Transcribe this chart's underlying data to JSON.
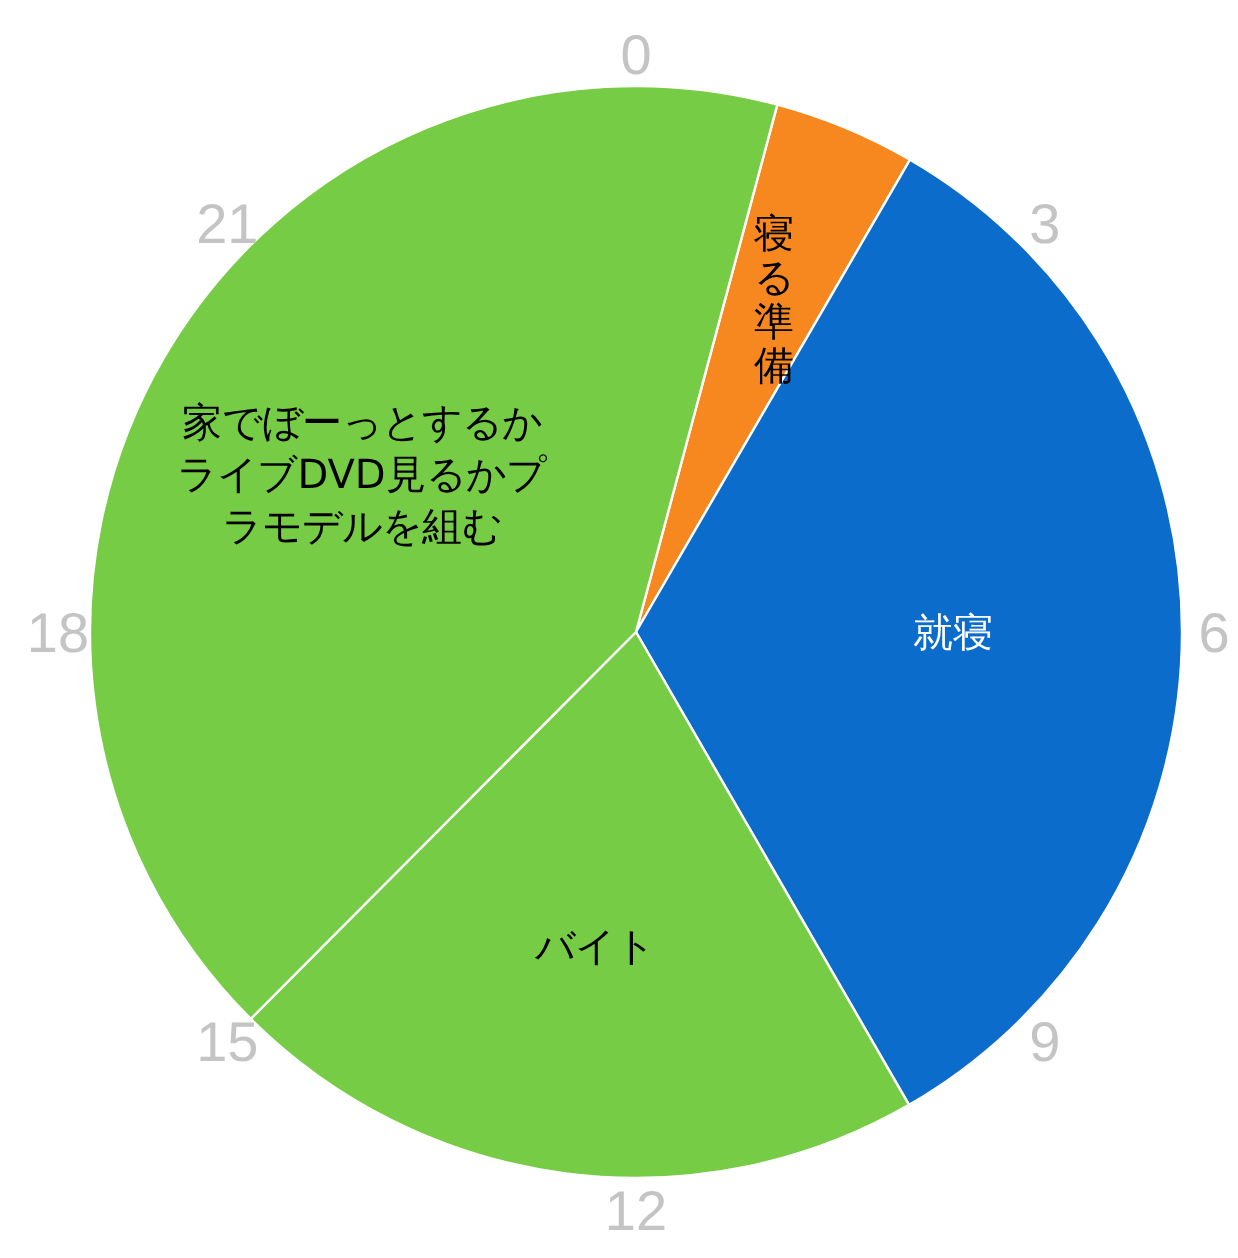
{
  "chart_data": {
    "type": "pie",
    "categories": [
      "寝る準備",
      "就寝",
      "バイト",
      "家でぼーっとするかライブDVD見るかプラモデルを組む"
    ],
    "values": [
      4.2,
      33.3,
      20.8,
      41.7
    ],
    "colors": [
      "#f7881f",
      "#0b6ccb",
      "#76cc44",
      "#76cc44"
    ],
    "annotations": [
      "0",
      "3",
      "6",
      "9",
      "12",
      "15",
      "18",
      "21"
    ]
  }
}
